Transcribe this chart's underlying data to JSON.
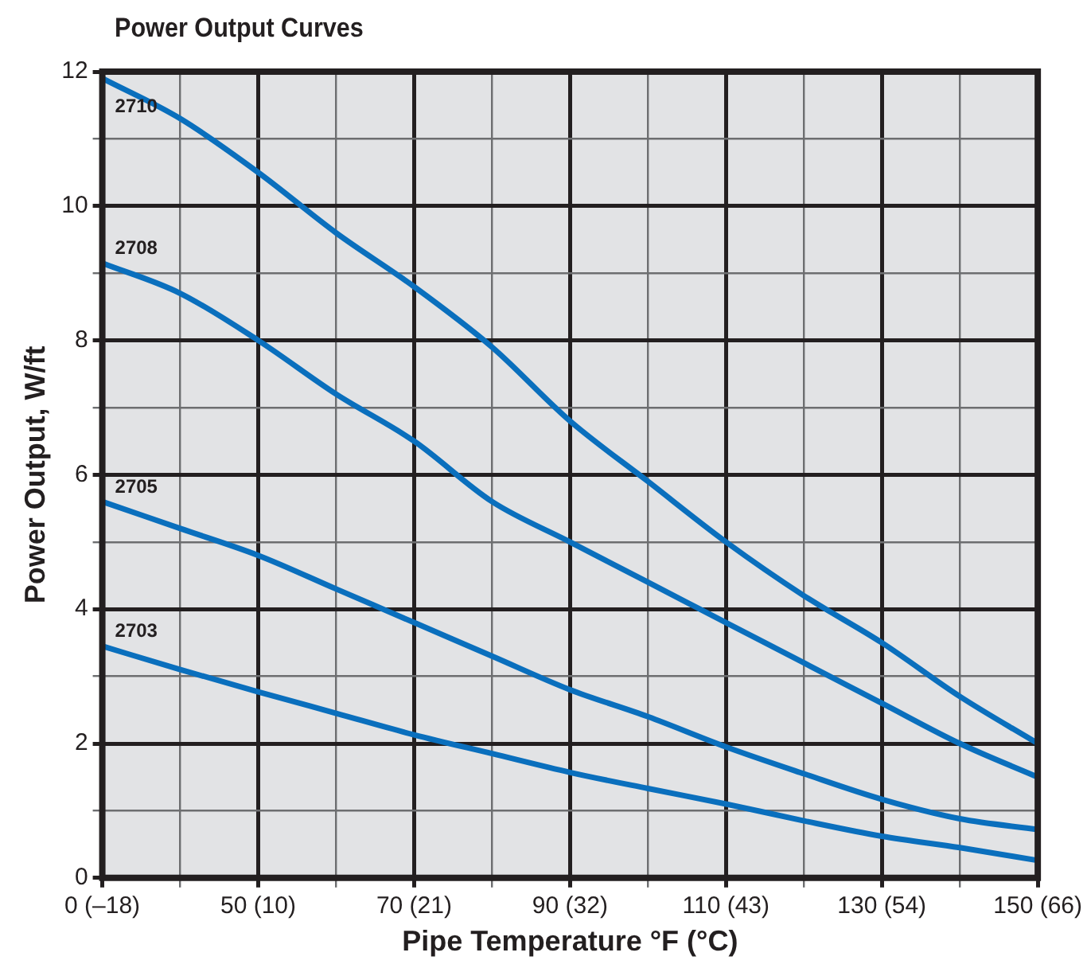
{
  "chart_data": {
    "type": "line",
    "title": "Power Output Curves",
    "xlabel": "Pipe Temperature °F (°C)",
    "ylabel": "Power Output, W/ft",
    "ylim": [
      0,
      12
    ],
    "categories": [
      "0 (–18)",
      null,
      "50 (10)",
      null,
      "70 (21)",
      null,
      "90 (32)",
      null,
      "110 (43)",
      null,
      "130 (54)",
      null,
      "150 (66)"
    ],
    "yticks": [
      0,
      {
        "value": 1,
        "label": null
      },
      2,
      {
        "value": 3,
        "label": null
      },
      4,
      {
        "value": 5,
        "label": null
      },
      6,
      {
        "value": 7,
        "label": null
      },
      8,
      {
        "value": 9,
        "label": null
      },
      10,
      {
        "value": 11,
        "label": null
      },
      12
    ],
    "grid": true,
    "legend": false,
    "marker": "none",
    "line_style": "solid",
    "series": [
      {
        "name": "2710",
        "color": "#0a6fbd",
        "values": [
          11.9,
          11.3,
          10.5,
          9.6,
          8.8,
          7.9,
          6.8,
          5.9,
          5.0,
          4.2,
          3.5,
          2.7,
          2.0
        ]
      },
      {
        "name": "2708",
        "color": "#0a6fbd",
        "values": [
          9.15,
          8.7,
          8.0,
          7.2,
          6.5,
          5.6,
          5.0,
          4.4,
          3.8,
          3.2,
          2.6,
          2.0,
          1.5
        ]
      },
      {
        "name": "2705",
        "color": "#0a6fbd",
        "values": [
          5.6,
          5.2,
          4.8,
          4.3,
          3.8,
          3.3,
          2.8,
          2.4,
          1.95,
          1.55,
          1.17,
          0.88,
          0.72
        ]
      },
      {
        "name": "2703",
        "color": "#0a6fbd",
        "values": [
          3.45,
          3.1,
          2.77,
          2.45,
          2.13,
          1.85,
          1.57,
          1.33,
          1.1,
          0.85,
          0.62,
          0.45,
          0.26
        ]
      }
    ]
  }
}
